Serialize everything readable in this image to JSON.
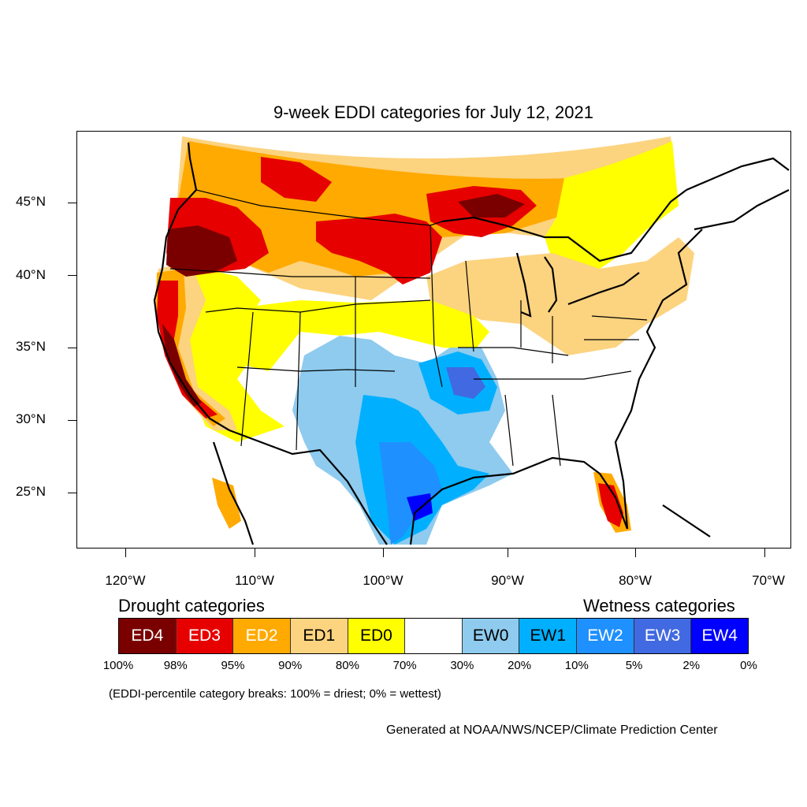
{
  "title": "9-week EDDI categories for July 12, 2021",
  "lat_labels": [
    "45°N",
    "40°N",
    "35°N",
    "30°N",
    "25°N"
  ],
  "lon_labels": [
    "120°W",
    "110°W",
    "100°W",
    "90°W",
    "80°W",
    "70°W"
  ],
  "legend": {
    "drought_heading": "Drought categories",
    "wetness_heading": "Wetness categories",
    "categories": [
      {
        "label": "ED4",
        "color": "#7a0000",
        "text_color": "#ffffff"
      },
      {
        "label": "ED3",
        "color": "#e60000",
        "text_color": "#ffffff"
      },
      {
        "label": "ED2",
        "color": "#ffaa00",
        "text_color": "#ffffff"
      },
      {
        "label": "ED1",
        "color": "#fcd37f",
        "text_color": "#000000"
      },
      {
        "label": "ED0",
        "color": "#ffff00",
        "text_color": "#000000"
      },
      {
        "label": "",
        "color": "#ffffff",
        "text_color": "#000000"
      },
      {
        "label": "EW0",
        "color": "#8ecbee",
        "text_color": "#000000"
      },
      {
        "label": "EW1",
        "color": "#00b0ff",
        "text_color": "#000000"
      },
      {
        "label": "EW2",
        "color": "#1e90ff",
        "text_color": "#ffffff"
      },
      {
        "label": "EW3",
        "color": "#4169e1",
        "text_color": "#ffffff"
      },
      {
        "label": "EW4",
        "color": "#0000ff",
        "text_color": "#ffffff"
      }
    ],
    "breaks": [
      "100%",
      "98%",
      "95%",
      "90%",
      "80%",
      "70%",
      "30%",
      "20%",
      "10%",
      "5%",
      "2%",
      "0%"
    ]
  },
  "note": "(EDDI-percentile category breaks: 100% = driest; 0% = wettest)",
  "credit": "Generated at NOAA/NWS/NCEP/Climate Prediction Center"
}
